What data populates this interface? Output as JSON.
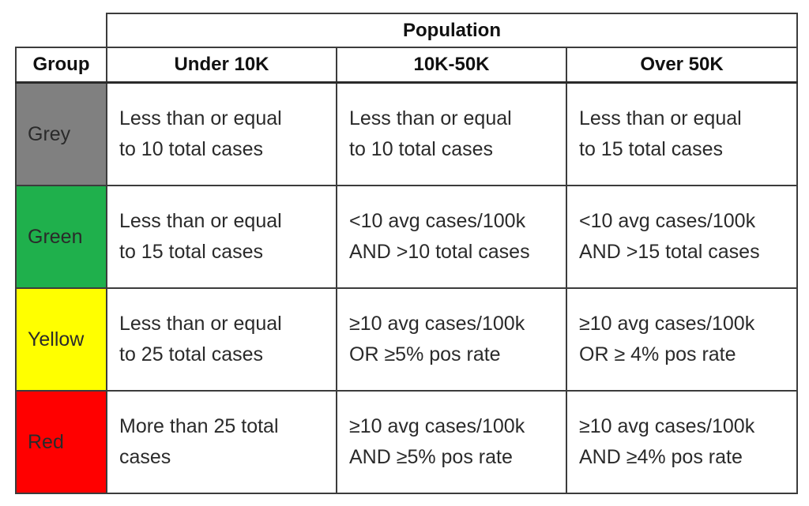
{
  "table": {
    "population_label": "Population",
    "headers": [
      "Group",
      "Under 10K",
      "10K-50K",
      "Over 50K"
    ],
    "rows": [
      {
        "group": "Grey",
        "color": "#808080",
        "cells": [
          [
            "Less than or equal",
            "to 10 total cases"
          ],
          [
            "Less than or equal",
            "to 10 total cases"
          ],
          [
            "Less than or equal",
            "to 15 total cases"
          ]
        ]
      },
      {
        "group": "Green",
        "color": "#1fb04c",
        "cells": [
          [
            "Less than or equal",
            "to 15 total cases"
          ],
          [
            "<10 avg cases/100k",
            "AND >10 total cases"
          ],
          [
            "<10 avg cases/100k",
            "AND >15 total cases"
          ]
        ]
      },
      {
        "group": "Yellow",
        "color": "#ffff00",
        "cells": [
          [
            "Less than or equal",
            "to 25 total cases"
          ],
          [
            "≥10 avg cases/100k",
            "OR ≥5% pos rate"
          ],
          [
            "≥10 avg cases/100k",
            "OR ≥ 4% pos rate"
          ]
        ]
      },
      {
        "group": "Red",
        "color": "#ff0000",
        "cells": [
          [
            "More than 25 total",
            "cases"
          ],
          [
            "≥10 avg cases/100k",
            "AND ≥5% pos rate"
          ],
          [
            "≥10 avg cases/100k",
            "AND ≥4% pos rate"
          ]
        ]
      }
    ]
  }
}
